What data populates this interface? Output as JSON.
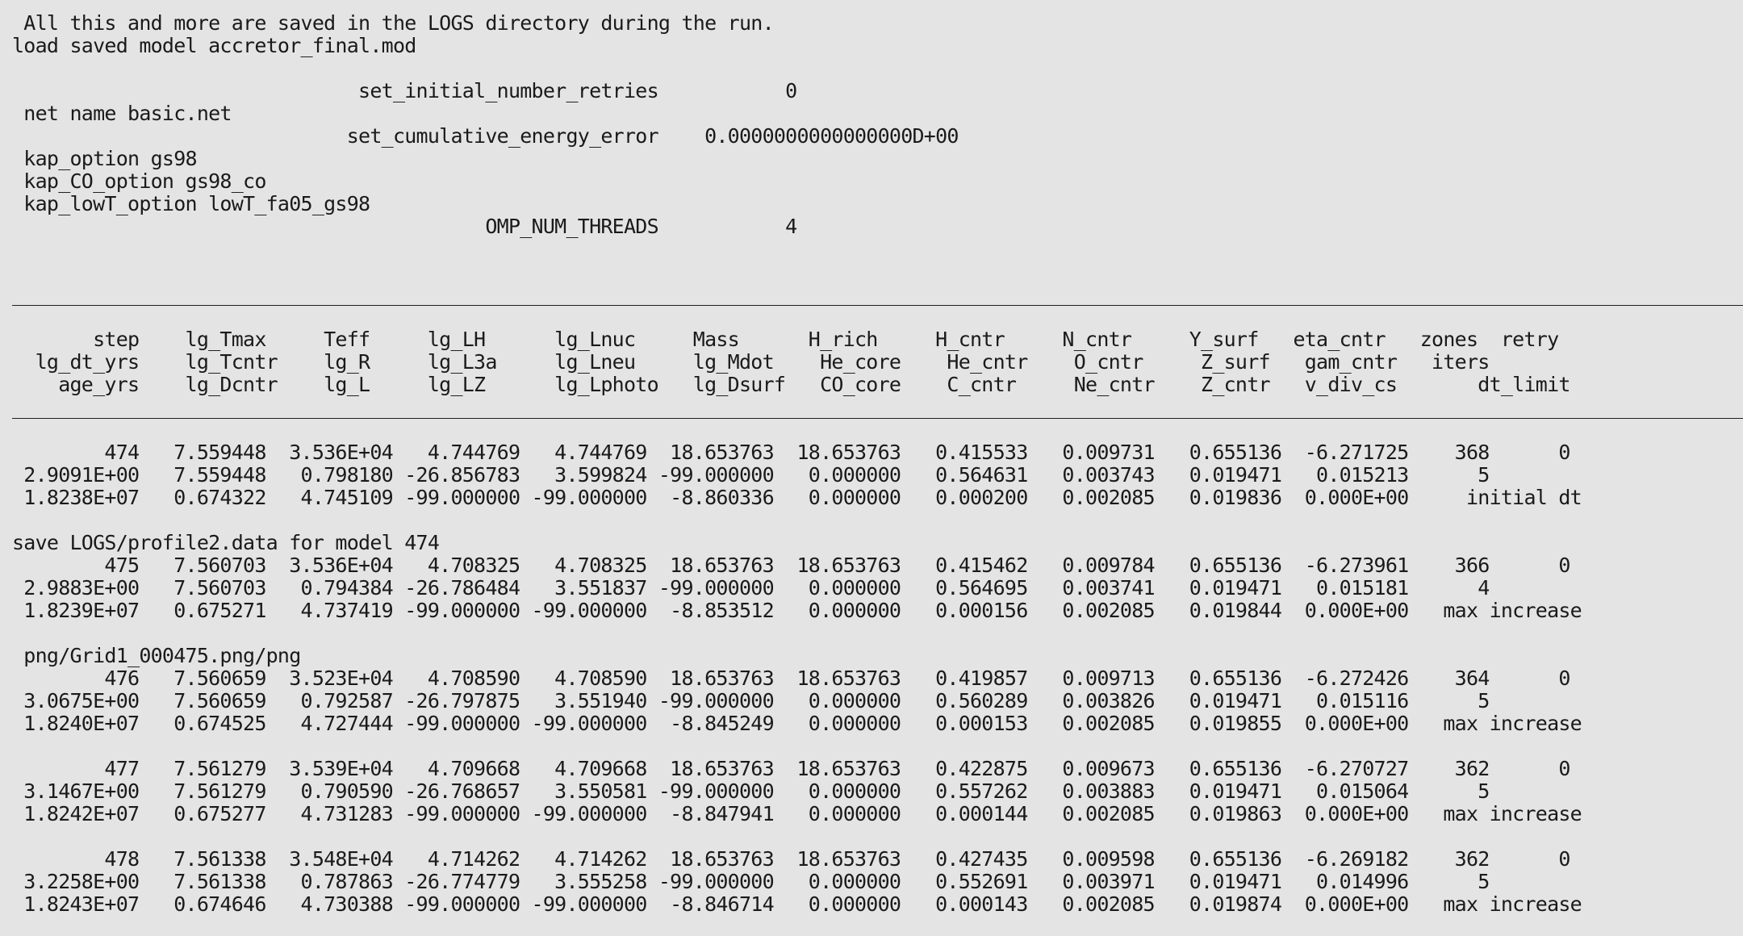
{
  "terminal": {
    "lines": [
      " All this and more are saved in the LOGS directory during the run.",
      "load saved model accretor_final.mod",
      "",
      "                              set_initial_number_retries           0",
      " net name basic.net",
      "                             set_cumulative_energy_error    0.0000000000000000D+00",
      " kap_option gs98",
      " kap_CO_option gs98_co",
      " kap_lowT_option lowT_fa05_gs98",
      "                                         OMP_NUM_THREADS           4",
      "",
      "",
      "______________________________________________________________________________________________________________________________________________________",
      "",
      "       step    lg_Tmax     Teff     lg_LH      lg_Lnuc     Mass      H_rich     H_cntr     N_cntr     Y_surf   eta_cntr   zones  retry",
      "  lg_dt_yrs    lg_Tcntr    lg_R     lg_L3a     lg_Lneu     lg_Mdot    He_core    He_cntr    O_cntr     Z_surf   gam_cntr   iters",
      "    age_yrs    lg_Dcntr    lg_L     lg_LZ      lg_Lphoto   lg_Dsurf   CO_core    C_cntr     Ne_cntr    Z_cntr   v_div_cs       dt_limit",
      "______________________________________________________________________________________________________________________________________________________",
      "",
      "        474   7.559448  3.536E+04   4.744769   4.744769  18.653763  18.653763   0.415533   0.009731   0.655136  -6.271725    368      0",
      " 2.9091E+00   7.559448   0.798180 -26.856783   3.599824 -99.000000   0.000000   0.564631   0.003743   0.019471   0.015213      5",
      " 1.8238E+07   0.674322   4.745109 -99.000000 -99.000000  -8.860336   0.000000   0.000200   0.002085   0.019836  0.000E+00     initial dt",
      "",
      "save LOGS/profile2.data for model 474",
      "        475   7.560703  3.536E+04   4.708325   4.708325  18.653763  18.653763   0.415462   0.009784   0.655136  -6.273961    366      0",
      " 2.9883E+00   7.560703   0.794384 -26.786484   3.551837 -99.000000   0.000000   0.564695   0.003741   0.019471   0.015181      4",
      " 1.8239E+07   0.675271   4.737419 -99.000000 -99.000000  -8.853512   0.000000   0.000156   0.002085   0.019844  0.000E+00   max increase",
      "",
      " png/Grid1_000475.png/png",
      "        476   7.560659  3.523E+04   4.708590   4.708590  18.653763  18.653763   0.419857   0.009713   0.655136  -6.272426    364      0",
      " 3.0675E+00   7.560659   0.792587 -26.797875   3.551940 -99.000000   0.000000   0.560289   0.003826   0.019471   0.015116      5",
      " 1.8240E+07   0.674525   4.727444 -99.000000 -99.000000  -8.845249   0.000000   0.000153   0.002085   0.019855  0.000E+00   max increase",
      "",
      "        477   7.561279  3.539E+04   4.709668   4.709668  18.653763  18.653763   0.422875   0.009673   0.655136  -6.270727    362      0",
      " 3.1467E+00   7.561279   0.790590 -26.768657   3.550581 -99.000000   0.000000   0.557262   0.003883   0.019471   0.015064      5",
      " 1.8242E+07   0.675277   4.731283 -99.000000 -99.000000  -8.847941   0.000000   0.000144   0.002085   0.019863  0.000E+00   max increase",
      "",
      "        478   7.561338  3.548E+04   4.714262   4.714262  18.653763  18.653763   0.427435   0.009598   0.655136  -6.269182    362      0",
      " 3.2258E+00   7.561338   0.787863 -26.774779   3.555258 -99.000000   0.000000   0.552691   0.003971   0.019471   0.014996      5",
      " 1.8243E+07   0.674646   4.730388 -99.000000 -99.000000  -8.846714   0.000000   0.000143   0.002085   0.019874  0.000E+00   max increase"
    ]
  },
  "colors": {
    "background": "#e4e4e4",
    "text": "#1a1a1a"
  }
}
